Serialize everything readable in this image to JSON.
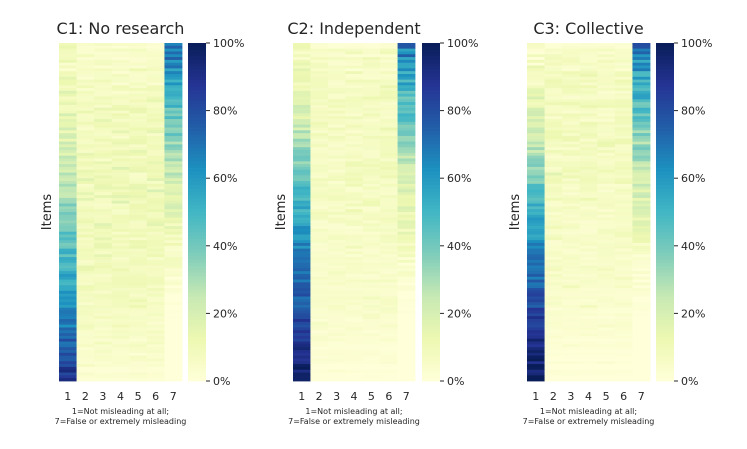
{
  "chart_data": [
    {
      "type": "heatmap",
      "title": "C1: No research",
      "ylabel": "Items",
      "x_ticks": [
        "1",
        "2",
        "3",
        "4",
        "5",
        "6",
        "7"
      ],
      "xnote_line1": "1=Not misleading at all;",
      "xnote_line2": "7=False or extremely misleading",
      "colorbar_ticks": [
        "0%",
        "20%",
        "40%",
        "60%",
        "80%",
        "100%"
      ],
      "value_range": [
        0,
        100
      ],
      "rows_sorted_by_rating_1_ascending": true,
      "pattern": "high rating-7 share for top items; high rating-1 share for bottom items",
      "column_1_share_percent_top_to_bottom": [
        8,
        10,
        14,
        22,
        30,
        42,
        52,
        60,
        75,
        90
      ]
    },
    {
      "type": "heatmap",
      "title": "C2: Independent",
      "ylabel": "Items",
      "x_ticks": [
        "1",
        "2",
        "3",
        "4",
        "5",
        "6",
        "7"
      ],
      "xnote_line1": "1=Not misleading at all;",
      "xnote_line2": "7=False or extremely misleading",
      "colorbar_ticks": [
        "0%",
        "20%",
        "40%",
        "60%",
        "80%",
        "100%"
      ],
      "value_range": [
        0,
        100
      ],
      "rows_sorted_by_rating_1_ascending": true,
      "pattern": "high rating-7 share for top items; high rating-1 share for bottom items",
      "column_1_share_percent_top_to_bottom": [
        6,
        12,
        20,
        35,
        48,
        60,
        70,
        78,
        88,
        97
      ]
    },
    {
      "type": "heatmap",
      "title": "C3: Collective",
      "ylabel": "Items",
      "x_ticks": [
        "1",
        "2",
        "3",
        "4",
        "5",
        "6",
        "7"
      ],
      "xnote_line1": "1=Not misleading at all;",
      "xnote_line2": "7=False or extremely misleading",
      "colorbar_ticks": [
        "0%",
        "20%",
        "40%",
        "60%",
        "80%",
        "100%"
      ],
      "value_range": [
        0,
        100
      ],
      "rows_sorted_by_rating_1_ascending": true,
      "pattern": "high rating-7 share for top items; high rating-1 share for bottom items",
      "column_1_share_percent_top_to_bottom": [
        5,
        10,
        18,
        30,
        45,
        58,
        70,
        80,
        90,
        98
      ]
    }
  ],
  "colormap": "YlGnBu",
  "colormap_stops": [
    "#ffffd9",
    "#edf8b1",
    "#c7e9b4",
    "#7fcdbb",
    "#41b6c4",
    "#1d91c0",
    "#225ea8",
    "#253494",
    "#081d58"
  ]
}
